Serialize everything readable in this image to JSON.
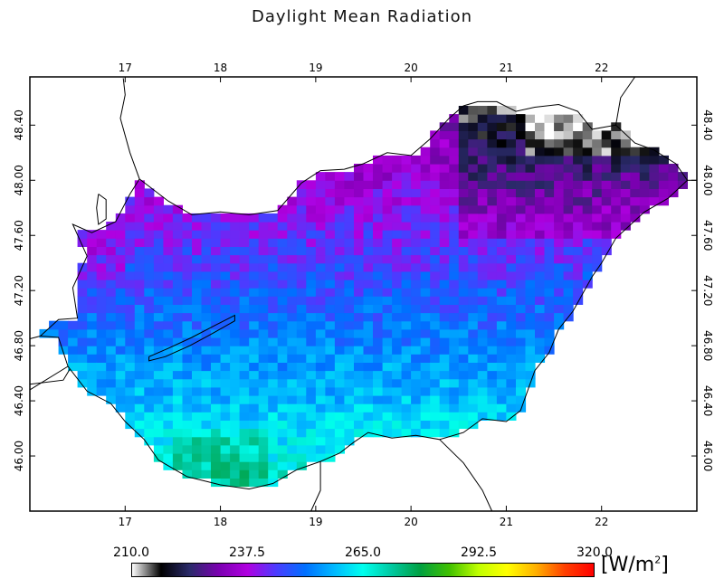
{
  "title": "Daylight Mean Radiation",
  "map": {
    "lon_range": [
      16.0,
      23.0
    ],
    "lat_range": [
      45.6,
      48.75
    ],
    "top_lon_ticks": [
      "17",
      "18",
      "19",
      "20",
      "21",
      "22"
    ],
    "bottom_lon_ticks": [
      "17",
      "18",
      "19",
      "20",
      "21",
      "22"
    ],
    "lat_ticks": [
      "48.40",
      "48.00",
      "47.60",
      "47.20",
      "46.80",
      "46.40",
      "46.00"
    ],
    "grid_cell_deg": {
      "lon": 0.1,
      "lat": 0.06
    },
    "border_color": "#000000"
  },
  "colorbar": {
    "tick_labels": [
      "210.0",
      "237.5",
      "265.0",
      "292.5",
      "320.0"
    ],
    "min": 210.0,
    "max": 320.0,
    "unit": "W/m",
    "unit_sup": "2",
    "stops": [
      "#ffffff",
      "#000000",
      "#2a2a6a",
      "#7a00b0",
      "#b000e0",
      "#4b3cff",
      "#0070ff",
      "#00b8ff",
      "#00ffee",
      "#00c8a0",
      "#00a040",
      "#40c000",
      "#c0ff00",
      "#ffff00",
      "#ffb000",
      "#ff4000",
      "#ff0000"
    ]
  }
}
